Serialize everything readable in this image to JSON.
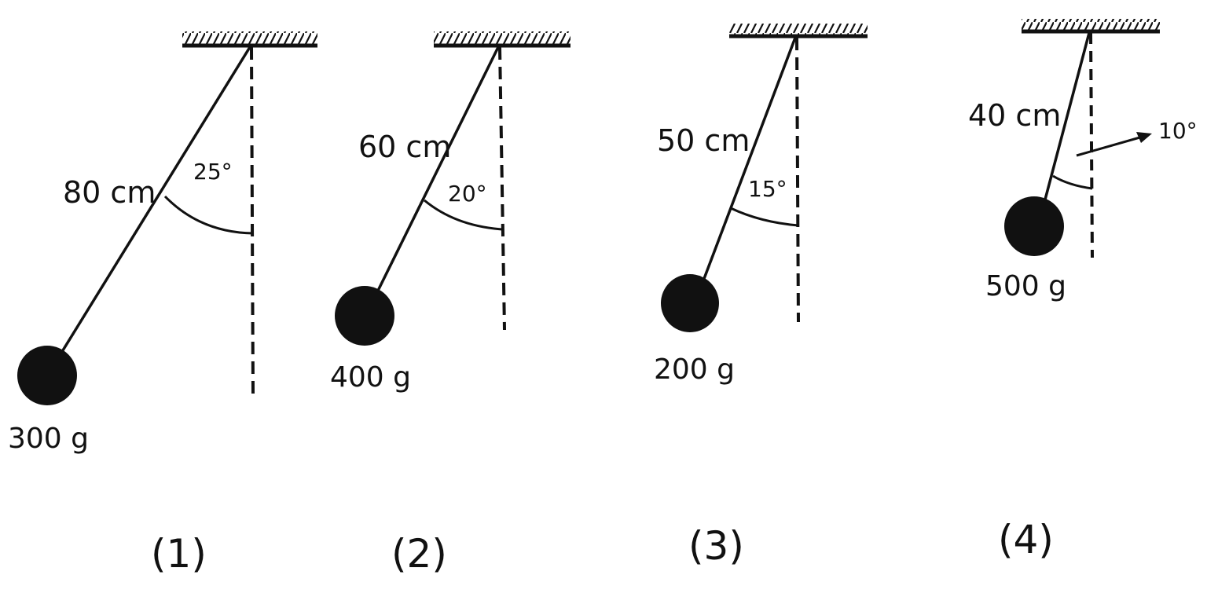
{
  "colors": {
    "ink": "#111111",
    "background": "#ffffff"
  },
  "pendulums": [
    {
      "caption": "(1)",
      "length_label": "80 cm",
      "angle_label": "25°",
      "mass_label": "300 g"
    },
    {
      "caption": "(2)",
      "length_label": "60 cm",
      "angle_label": "20°",
      "mass_label": "400 g"
    },
    {
      "caption": "(3)",
      "length_label": "50 cm",
      "angle_label": "15°",
      "mass_label": "200 g"
    },
    {
      "caption": "(4)",
      "length_label": "40 cm",
      "angle_label": "10°",
      "mass_label": "500 g"
    }
  ]
}
